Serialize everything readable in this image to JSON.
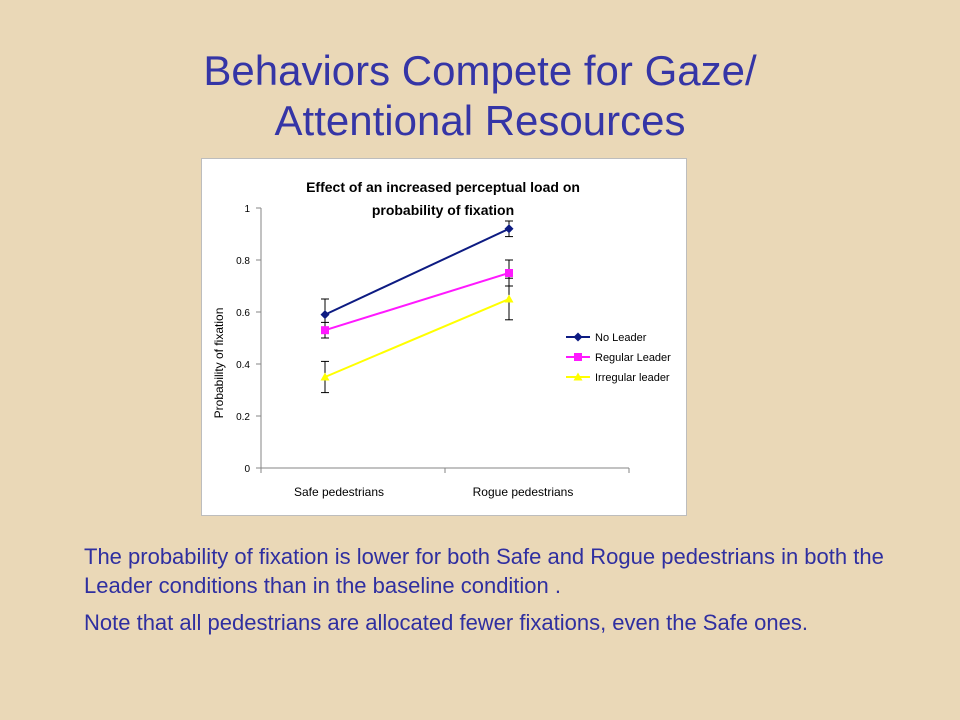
{
  "slide": {
    "title_line1": "Behaviors Compete for Gaze/",
    "title_line2": "Attentional Resources",
    "paragraph1": "The probability of fixation is lower for both Safe and Rogue pedestrians in both the Leader conditions than in the baseline condition .",
    "paragraph2": "Note that all pedestrians are allocated fewer fixations, even the Safe ones.",
    "title_color": "#3535a6",
    "background_color": "#ead8b7"
  },
  "chart_data": {
    "type": "line",
    "title_line1": "Effect of an increased perceptual load on",
    "title_line2": "probability of fixation",
    "xlabel": "",
    "ylabel": "Probability of fixation",
    "categories": [
      "Safe pedestrians",
      "Rogue pedestrians"
    ],
    "ylim": [
      0,
      1
    ],
    "yticks": [
      "0",
      "0.2",
      "0.4",
      "0.6",
      "0.8",
      "1"
    ],
    "grid": false,
    "legend_position": "right",
    "series": [
      {
        "name": "No Leader",
        "values": [
          0.59,
          0.92
        ],
        "errors": [
          0.06,
          0.03
        ],
        "color": "#0d1b82",
        "marker": "diamond"
      },
      {
        "name": "Regular Leader",
        "values": [
          0.53,
          0.75
        ],
        "errors": [
          0.03,
          0.05
        ],
        "color": "#ff19ff",
        "marker": "square"
      },
      {
        "name": "Irregular leader",
        "values": [
          0.35,
          0.65
        ],
        "errors": [
          0.06,
          0.08
        ],
        "color": "#ffff00",
        "marker": "triangle"
      }
    ]
  }
}
